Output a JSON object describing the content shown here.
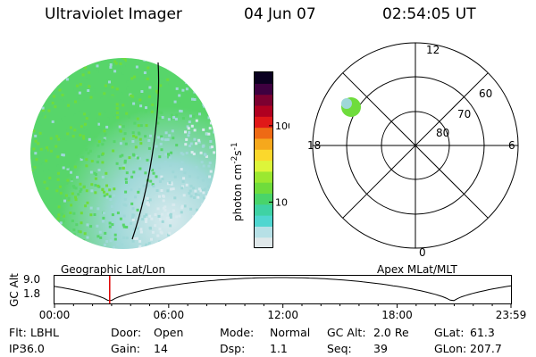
{
  "header": {
    "instrument": "Ultraviolet Imager",
    "date": "04 Jun 07",
    "time": "02:54:05 UT"
  },
  "colorbar": {
    "unit_label": "photon cm",
    "unit_sup1": "-2",
    "unit_mid": "s",
    "unit_sup2": "-1",
    "ticks": [
      {
        "label": "100",
        "value": 100
      },
      {
        "label": "10",
        "value": 10
      }
    ],
    "colors": [
      "#dfe8ea",
      "#b6e0e6",
      "#4fd6d0",
      "#3fd2a4",
      "#49d46a",
      "#6fdc3c",
      "#9be830",
      "#ddf53a",
      "#fbd82c",
      "#f6a81c",
      "#ee6a14",
      "#e01818",
      "#b00020",
      "#7c0030",
      "#3e0040",
      "#0a0020"
    ]
  },
  "image": {
    "colors": {
      "dominant": "#57d56a",
      "secondary": "#9fd8d8",
      "pale": "#d8eaee",
      "rim": "#9ad0e8"
    }
  },
  "polar": {
    "mlt_labels": [
      {
        "label": "12",
        "angle": 0
      },
      {
        "label": "6",
        "angle": 90
      },
      {
        "label": "0",
        "angle": 180
      },
      {
        "label": "18",
        "angle": 270
      }
    ],
    "lat_labels": [
      "60",
      "70",
      "80"
    ],
    "patch_color": "#6fdc3c"
  },
  "timeline": {
    "label_left": "Geographic Lat/Lon",
    "label_right": "Apex MLat/MLT",
    "axis_label": "GC Alt",
    "y_ticks": [
      "9.0",
      "1.8"
    ],
    "x_ticks": [
      "00:00",
      "06:00",
      "12:00",
      "18:00",
      "23:59"
    ],
    "marker_hours": 2.9,
    "marker_color": "#dd0000"
  },
  "info": {
    "row1": [
      {
        "label": "Flt:",
        "value": "LBHL"
      },
      {
        "label": "Door:",
        "value": "Open"
      },
      {
        "label": "Mode:",
        "value": "Normal"
      },
      {
        "label": "GC Alt:",
        "value": "2.0 Re"
      },
      {
        "label": "GLat:",
        "value": "61.3"
      }
    ],
    "row2": [
      {
        "label": "IP:",
        "value": "36.0"
      },
      {
        "label": "Gain:",
        "value": "14"
      },
      {
        "label": "Dsp:",
        "value": "1.1"
      },
      {
        "label": "Seq:",
        "value": "39"
      },
      {
        "label": "GLon:",
        "value": "207.7"
      }
    ]
  }
}
